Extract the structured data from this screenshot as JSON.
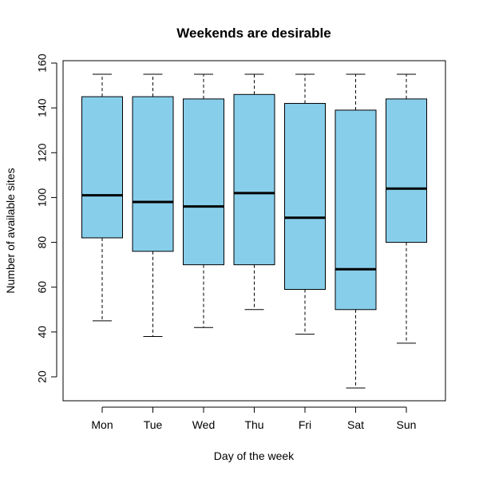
{
  "chart_data": {
    "type": "boxplot",
    "title": "Weekends are desirable",
    "xlabel": "Day of the week",
    "ylabel": "Number of available sites",
    "ylim": [
      10,
      160
    ],
    "yticks": [
      20,
      40,
      60,
      80,
      100,
      120,
      140,
      160
    ],
    "grid": false,
    "categories": [
      "Mon",
      "Tue",
      "Wed",
      "Thu",
      "Fri",
      "Sat",
      "Sun"
    ],
    "boxes": [
      {
        "label": "Mon",
        "min": 45,
        "q1": 82,
        "median": 101,
        "q3": 145,
        "max": 155
      },
      {
        "label": "Tue",
        "min": 38,
        "q1": 76,
        "median": 98,
        "q3": 145,
        "max": 155
      },
      {
        "label": "Wed",
        "min": 42,
        "q1": 70,
        "median": 96,
        "q3": 144,
        "max": 155
      },
      {
        "label": "Thu",
        "min": 50,
        "q1": 70,
        "median": 102,
        "q3": 146,
        "max": 155
      },
      {
        "label": "Fri",
        "min": 39,
        "q1": 59,
        "median": 91,
        "q3": 142,
        "max": 155
      },
      {
        "label": "Sat",
        "min": 15,
        "q1": 50,
        "median": 68,
        "q3": 139,
        "max": 155
      },
      {
        "label": "Sun",
        "min": 35,
        "q1": 80,
        "median": 104,
        "q3": 144,
        "max": 155
      }
    ],
    "colors": {
      "box_fill": "#87ceeb",
      "stroke": "#000000"
    }
  }
}
